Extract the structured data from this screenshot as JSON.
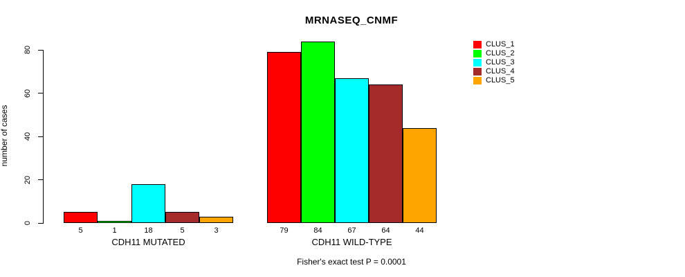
{
  "chart_data": {
    "type": "bar",
    "title": "MRNASEQ_CNMF",
    "ylabel": "number of cases",
    "xlabel": "",
    "subtitle": "Fisher's exact test P = 0.0001",
    "ylim": [
      0,
      80
    ],
    "yticks": [
      0,
      20,
      40,
      60,
      80
    ],
    "grid": false,
    "legend_position": "right",
    "series": [
      {
        "name": "CLUS_1",
        "color": "#FF0000"
      },
      {
        "name": "CLUS_2",
        "color": "#00FF00"
      },
      {
        "name": "CLUS_3",
        "color": "#00FFFF"
      },
      {
        "name": "CLUS_4",
        "color": "#A52A2A"
      },
      {
        "name": "CLUS_5",
        "color": "#FFA500"
      }
    ],
    "groups": [
      {
        "label": "CDH11 MUTATED",
        "values": [
          5,
          1,
          18,
          5,
          3
        ]
      },
      {
        "label": "CDH11 WILD-TYPE",
        "values": [
          79,
          84,
          67,
          64,
          44
        ]
      }
    ],
    "colors": {
      "background": "#FFFFFF",
      "axis": "#000000",
      "bar_border": "#000000",
      "text": "#000000"
    }
  }
}
